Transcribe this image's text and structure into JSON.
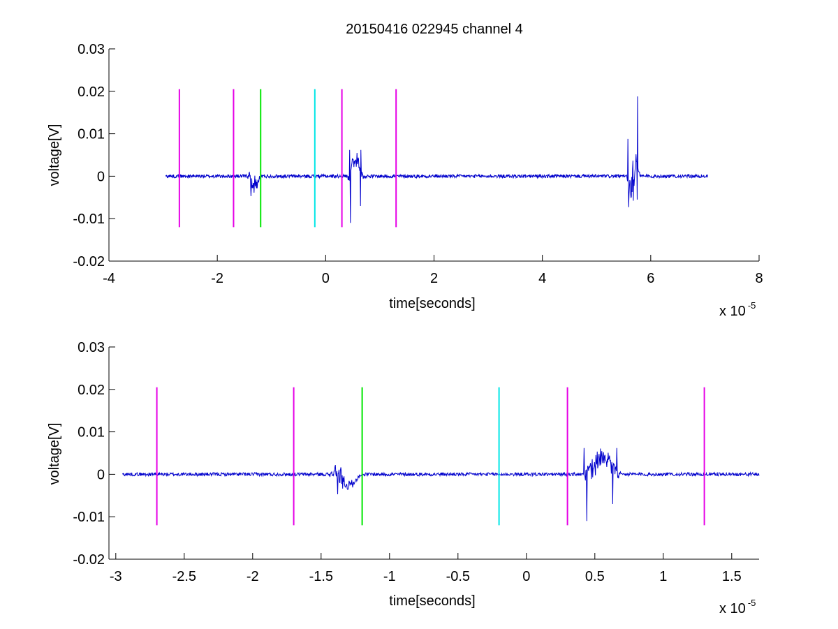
{
  "chart_data": [
    {
      "type": "line",
      "title": "20150416 022945 channel 4",
      "xlabel": "time[seconds]",
      "ylabel": "voltage[V]",
      "x_multiplier_label": "x 10",
      "x_multiplier_exponent": "-5",
      "xlim": [
        -4e-05,
        8e-05
      ],
      "ylim": [
        -0.02,
        0.03
      ],
      "x_ticks": [
        -4e-05,
        -2e-05,
        0,
        2e-05,
        4e-05,
        6e-05,
        8e-05
      ],
      "x_tick_labels": [
        "-4",
        "-2",
        "0",
        "2",
        "4",
        "6",
        "8"
      ],
      "y_ticks": [
        -0.02,
        -0.01,
        0,
        0.01,
        0.02,
        0.03
      ],
      "y_tick_labels": [
        "-0.02",
        "-0.01",
        "0",
        "0.01",
        "0.02",
        "0.03"
      ],
      "grid": false,
      "series": [
        {
          "color": "#0000cc",
          "x_range": [
            -2.95e-05,
            7.05e-05
          ],
          "baseline": 0.0,
          "noise_amplitude": 0.0004,
          "bursts": [
            {
              "start": -1.45e-05,
              "end": -1.2e-05,
              "amplitude": 0.004
            },
            {
              "start": 4e-06,
              "end": 7e-06,
              "amplitude": 0.006
            },
            {
              "start": 5.55e-05,
              "end": 5.8e-05,
              "amplitude": 0.008
            }
          ],
          "spikes": [
            {
              "x": -1.38e-05,
              "y": -0.0047
            },
            {
              "x": 4.4e-06,
              "y": 0.0062
            },
            {
              "x": 4.6e-06,
              "y": -0.011
            },
            {
              "x": 6.5e-06,
              "y": 0.0062
            },
            {
              "x": 6.4e-06,
              "y": -0.007
            },
            {
              "x": 5.58e-05,
              "y": 0.0088
            },
            {
              "x": 5.59e-05,
              "y": -0.0073
            },
            {
              "x": 5.76e-05,
              "y": 0.0188
            },
            {
              "x": 5.75e-05,
              "y": -0.0055
            }
          ]
        }
      ],
      "markers": [
        {
          "x": -2.7e-05,
          "y_range": [
            -0.012,
            0.0205
          ],
          "color": "#e600e6"
        },
        {
          "x": -1.7e-05,
          "y_range": [
            -0.012,
            0.0205
          ],
          "color": "#e600e6"
        },
        {
          "x": -1.2e-05,
          "y_range": [
            -0.012,
            0.0205
          ],
          "color": "#00e600"
        },
        {
          "x": -2e-06,
          "y_range": [
            -0.012,
            0.0205
          ],
          "color": "#00e6e6"
        },
        {
          "x": 3e-06,
          "y_range": [
            -0.012,
            0.0205
          ],
          "color": "#e600e6"
        },
        {
          "x": 1.3e-05,
          "y_range": [
            -0.012,
            0.0205
          ],
          "color": "#e600e6"
        }
      ]
    },
    {
      "type": "line",
      "title": "",
      "xlabel": "time[seconds]",
      "ylabel": "voltage[V]",
      "x_multiplier_label": "x 10",
      "x_multiplier_exponent": "-5",
      "xlim": [
        -3.05e-05,
        1.7e-05
      ],
      "ylim": [
        -0.02,
        0.03
      ],
      "x_ticks": [
        -3e-05,
        -2.5e-05,
        -2e-05,
        -1.5e-05,
        -1e-05,
        -5e-06,
        0,
        5e-06,
        1e-05,
        1.5e-05
      ],
      "x_tick_labels": [
        "-3",
        "-2.5",
        "-2",
        "-1.5",
        "-1",
        "-0.5",
        "0",
        "0.5",
        "1",
        "1.5"
      ],
      "y_ticks": [
        -0.02,
        -0.01,
        0,
        0.01,
        0.02,
        0.03
      ],
      "y_tick_labels": [
        "-0.02",
        "-0.01",
        "0",
        "0.01",
        "0.02",
        "0.03"
      ],
      "grid": false,
      "series": [
        {
          "color": "#0000cc",
          "x_range": [
            -2.95e-05,
            1.7e-05
          ],
          "baseline": 0.0,
          "noise_amplitude": 0.0004,
          "bursts": [
            {
              "start": -1.45e-05,
              "end": -1.2e-05,
              "amplitude": 0.004
            },
            {
              "start": 4e-06,
              "end": 7e-06,
              "amplitude": 0.006
            }
          ],
          "spikes": [
            {
              "x": -1.38e-05,
              "y": -0.0047
            },
            {
              "x": 4.2e-06,
              "y": 0.0062
            },
            {
              "x": 4.4e-06,
              "y": -0.011
            },
            {
              "x": 6.6e-06,
              "y": 0.0062
            },
            {
              "x": 6.3e-06,
              "y": -0.007
            }
          ]
        }
      ],
      "markers": [
        {
          "x": -2.7e-05,
          "y_range": [
            -0.012,
            0.0205
          ],
          "color": "#e600e6"
        },
        {
          "x": -1.7e-05,
          "y_range": [
            -0.012,
            0.0205
          ],
          "color": "#e600e6"
        },
        {
          "x": -1.2e-05,
          "y_range": [
            -0.012,
            0.0205
          ],
          "color": "#00e600"
        },
        {
          "x": -2e-06,
          "y_range": [
            -0.012,
            0.0205
          ],
          "color": "#00e6e6"
        },
        {
          "x": 3e-06,
          "y_range": [
            -0.012,
            0.0205
          ],
          "color": "#e600e6"
        },
        {
          "x": 1.3e-05,
          "y_range": [
            -0.012,
            0.0205
          ],
          "color": "#e600e6"
        }
      ]
    }
  ]
}
